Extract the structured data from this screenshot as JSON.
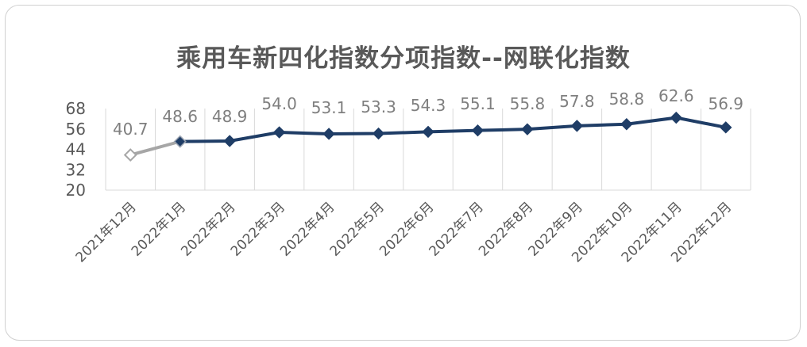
{
  "chart_data": {
    "type": "line",
    "title": "乘用车新四化指数分项指数--网联化指数",
    "categories": [
      "2021年12月",
      "2022年1月",
      "2022年2月",
      "2022年3月",
      "2022年4月",
      "2022年5月",
      "2022年6月",
      "2022年7月",
      "2022年8月",
      "2022年9月",
      "2022年10月",
      "2022年11月",
      "2022年12月"
    ],
    "values": [
      40.7,
      48.6,
      48.9,
      54.0,
      53.1,
      53.3,
      54.3,
      55.1,
      55.8,
      57.8,
      58.8,
      62.6,
      56.9
    ],
    "data_labels": [
      "40.7",
      "48.6",
      "48.9",
      "54.0",
      "53.1",
      "53.3",
      "54.3",
      "55.1",
      "55.8",
      "57.8",
      "58.8",
      "62.6",
      "56.9"
    ],
    "yticks": [
      "68",
      "56",
      "44",
      "32",
      "20"
    ],
    "ylim": [
      20,
      68
    ],
    "grid": "vertical",
    "colors": {
      "main": "#1f3d66",
      "prior": "#a6a6a6",
      "grid": "#d9d9d9"
    },
    "legend": "none"
  }
}
